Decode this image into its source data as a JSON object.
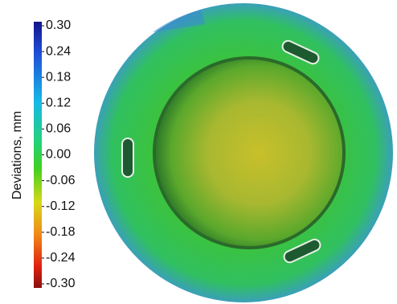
{
  "colorbar": {
    "label": "Deviations, mm",
    "range": [
      -0.3,
      0.3
    ],
    "ticks": [
      {
        "value": 0.3,
        "label": "0.30"
      },
      {
        "value": 0.24,
        "label": "0.24"
      },
      {
        "value": 0.18,
        "label": "0.18"
      },
      {
        "value": 0.12,
        "label": "0.12"
      },
      {
        "value": 0.06,
        "label": "0.06"
      },
      {
        "value": 0,
        "label": "0.00"
      },
      {
        "value": -0.06,
        "label": "-0.06"
      },
      {
        "value": -0.12,
        "label": "-0.12"
      },
      {
        "value": -0.18,
        "label": "-0.18"
      },
      {
        "value": -0.24,
        "label": "-0.24"
      },
      {
        "value": -0.3,
        "label": "-0.30"
      }
    ]
  }
}
